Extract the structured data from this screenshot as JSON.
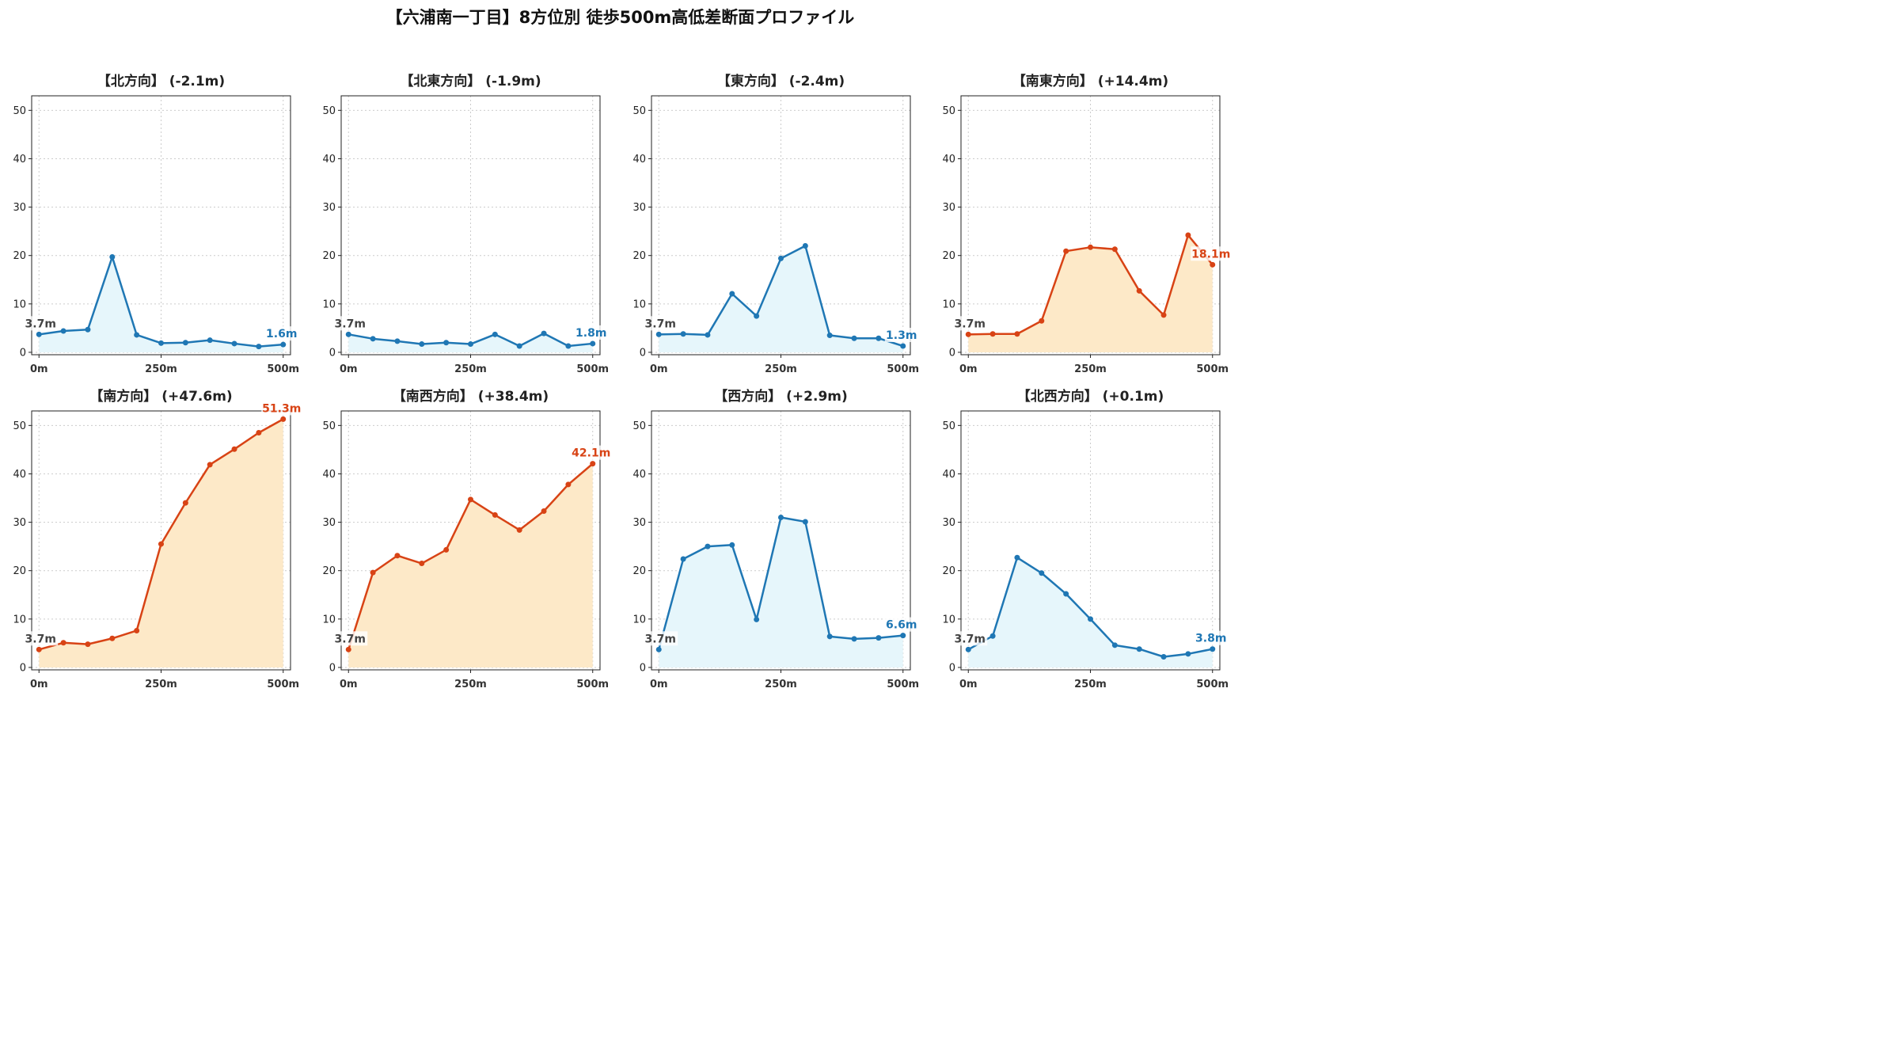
{
  "title": "【六浦南一丁目】8方位別 徒歩500m高低差断面プロファイル",
  "colors": {
    "down": "#1f77b4",
    "up": "#d84315",
    "downFill": "#e6f6fb",
    "upFill": "#fde9c8"
  },
  "chart_data": [
    {
      "type": "area",
      "title": "【北方向】 (-2.1m)",
      "trend": "down",
      "x": [
        0,
        50,
        100,
        150,
        200,
        250,
        300,
        350,
        400,
        450,
        500
      ],
      "y": [
        3.7,
        4.4,
        4.7,
        19.7,
        3.6,
        1.9,
        2.0,
        2.5,
        1.8,
        1.2,
        1.6
      ],
      "start_label": "3.7m",
      "end_label": "1.6m",
      "xticks": [
        "0m",
        "250m",
        "500m"
      ],
      "yticks": [
        0,
        10,
        20,
        30,
        40,
        50
      ],
      "ylim": [
        0,
        53
      ],
      "grid": true
    },
    {
      "type": "area",
      "title": "【北東方向】 (-1.9m)",
      "trend": "down",
      "x": [
        0,
        50,
        100,
        150,
        200,
        250,
        300,
        350,
        400,
        450,
        500
      ],
      "y": [
        3.7,
        2.8,
        2.3,
        1.7,
        2.0,
        1.7,
        3.7,
        1.3,
        3.9,
        1.3,
        1.8
      ],
      "start_label": "3.7m",
      "end_label": "1.8m",
      "xticks": [
        "0m",
        "250m",
        "500m"
      ],
      "yticks": [
        0,
        10,
        20,
        30,
        40,
        50
      ],
      "ylim": [
        0,
        53
      ],
      "grid": true
    },
    {
      "type": "area",
      "title": "【東方向】 (-2.4m)",
      "trend": "down",
      "x": [
        0,
        50,
        100,
        150,
        200,
        250,
        300,
        350,
        400,
        450,
        500
      ],
      "y": [
        3.7,
        3.8,
        3.6,
        12.1,
        7.5,
        19.4,
        22.0,
        3.5,
        2.9,
        2.9,
        1.3
      ],
      "start_label": "3.7m",
      "end_label": "1.3m",
      "xticks": [
        "0m",
        "250m",
        "500m"
      ],
      "yticks": [
        0,
        10,
        20,
        30,
        40,
        50
      ],
      "ylim": [
        0,
        53
      ],
      "grid": true
    },
    {
      "type": "area",
      "title": "【南東方向】 (+14.4m)",
      "trend": "up",
      "x": [
        0,
        50,
        100,
        150,
        200,
        250,
        300,
        350,
        400,
        450,
        500
      ],
      "y": [
        3.7,
        3.8,
        3.8,
        6.5,
        20.9,
        21.7,
        21.3,
        12.7,
        7.7,
        24.2,
        18.1
      ],
      "start_label": "3.7m",
      "end_label": "18.1m",
      "xticks": [
        "0m",
        "250m",
        "500m"
      ],
      "yticks": [
        0,
        10,
        20,
        30,
        40,
        50
      ],
      "ylim": [
        0,
        53
      ],
      "grid": true
    },
    {
      "type": "area",
      "title": "【南方向】 (+47.6m)",
      "trend": "up",
      "x": [
        0,
        50,
        100,
        150,
        200,
        250,
        300,
        350,
        400,
        450,
        500
      ],
      "y": [
        3.7,
        5.1,
        4.8,
        6.0,
        7.6,
        25.5,
        34.0,
        41.9,
        45.1,
        48.5,
        51.3
      ],
      "start_label": "3.7m",
      "end_label": "51.3m",
      "xticks": [
        "0m",
        "250m",
        "500m"
      ],
      "yticks": [
        0,
        10,
        20,
        30,
        40,
        50
      ],
      "ylim": [
        0,
        53
      ],
      "grid": true
    },
    {
      "type": "area",
      "title": "【南西方向】 (+38.4m)",
      "trend": "up",
      "x": [
        0,
        50,
        100,
        150,
        200,
        250,
        300,
        350,
        400,
        450,
        500
      ],
      "y": [
        3.7,
        19.6,
        23.1,
        21.5,
        24.3,
        34.7,
        31.5,
        28.4,
        32.3,
        37.8,
        42.1
      ],
      "start_label": "3.7m",
      "end_label": "42.1m",
      "xticks": [
        "0m",
        "250m",
        "500m"
      ],
      "yticks": [
        0,
        10,
        20,
        30,
        40,
        50
      ],
      "ylim": [
        0,
        53
      ],
      "grid": true
    },
    {
      "type": "area",
      "title": "【西方向】 (+2.9m)",
      "trend": "down",
      "x": [
        0,
        50,
        100,
        150,
        200,
        250,
        300,
        350,
        400,
        450,
        500
      ],
      "y": [
        3.7,
        22.4,
        25.0,
        25.3,
        9.9,
        31.0,
        30.1,
        6.4,
        5.9,
        6.1,
        6.6
      ],
      "start_label": "3.7m",
      "end_label": "6.6m",
      "xticks": [
        "0m",
        "250m",
        "500m"
      ],
      "yticks": [
        0,
        10,
        20,
        30,
        40,
        50
      ],
      "ylim": [
        0,
        53
      ],
      "grid": true
    },
    {
      "type": "area",
      "title": "【北西方向】 (+0.1m)",
      "trend": "down",
      "x": [
        0,
        50,
        100,
        150,
        200,
        250,
        300,
        350,
        400,
        450,
        500
      ],
      "y": [
        3.7,
        6.5,
        22.7,
        19.5,
        15.2,
        10.0,
        4.6,
        3.8,
        2.2,
        2.8,
        3.8
      ],
      "start_label": "3.7m",
      "end_label": "3.8m",
      "xticks": [
        "0m",
        "250m",
        "500m"
      ],
      "yticks": [
        0,
        10,
        20,
        30,
        40,
        50
      ],
      "ylim": [
        0,
        53
      ],
      "grid": true
    }
  ]
}
